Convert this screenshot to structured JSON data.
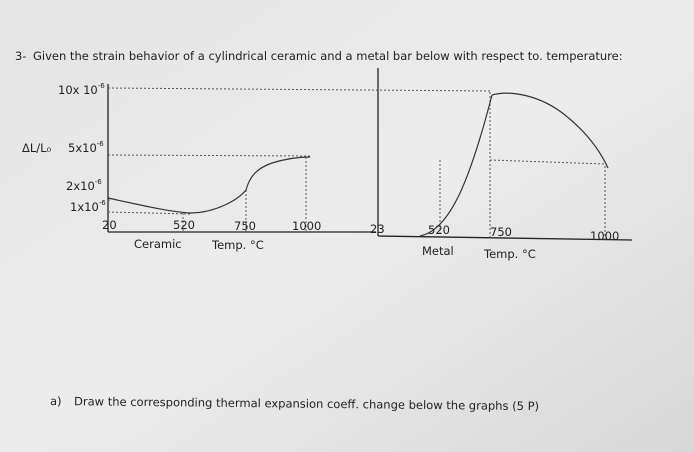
{
  "question": {
    "number": "3-",
    "text": "Given the strain behavior of a cylindrical ceramic and a metal bar below with respect to. temperature:"
  },
  "strain_axis": {
    "label": "ΔL/L₀",
    "levels": [
      {
        "text": "10x 10",
        "exponent": "-6"
      },
      {
        "text": "5x10",
        "exponent": "-6"
      },
      {
        "text": "2x10",
        "exponent": "-6"
      },
      {
        "text": "1x10",
        "exponent": "-6"
      }
    ]
  },
  "ceramic_graph": {
    "ticks": [
      "20",
      "520",
      "750",
      "1000"
    ],
    "name": "Ceramic",
    "axis_label": "Temp. °C"
  },
  "metal_graph": {
    "ticks": [
      "23",
      "520",
      "750",
      "1000"
    ],
    "name": "Metal",
    "axis_label": "Temp. °C"
  },
  "task": {
    "letter": "a)",
    "text": "Draw the corresponding thermal expansion coeff. change below the graphs (5 P)"
  }
}
